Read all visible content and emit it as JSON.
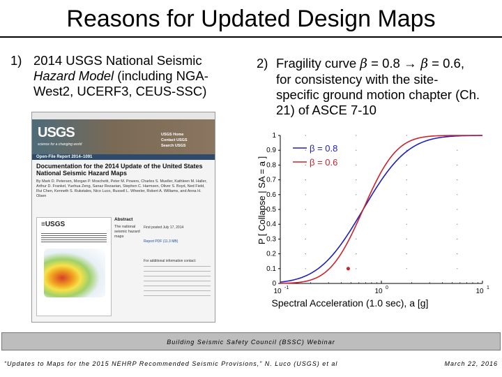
{
  "slide": {
    "title": "Reasons for Updated Design Maps",
    "point1": {
      "number": "1)",
      "line1": "2014 USGS National Seismic",
      "line2_italic": "Hazard Model",
      "line2_rest": " (including NGA-",
      "line3": "West2, UCERF3, CEUS-SSC)"
    },
    "point2": {
      "number": "2)",
      "line1_pre": "Fragility curve ",
      "line1_beta1": "β",
      "line1_eq1": " = 0.8 ",
      "line1_arrow": "→",
      "line1_beta2": " β",
      "line1_eq2": " = 0.6,",
      "line2": "for consistency with the site-",
      "line3": "specific ground motion chapter (Ch.",
      "line4": "21) of ASCE 7-10"
    }
  },
  "screenshot": {
    "usgs_logo": "USGS",
    "usgs_tagline": "science for a changing world",
    "links": [
      "USGS Home",
      "Contact USGS",
      "Search USGS"
    ],
    "series": "Open-File Report 2014–1091",
    "doc_title": "Documentation for the 2014 Update of the United States National Seismic Hazard Maps",
    "authors": "By Mark D. Petersen, Morgan P. Moschetti, Peter M. Powers, Charles S. Mueller, Kathleen M. Haller, Arthur D. Frankel, Yuehua Zeng, Sanaz Rezaeian, Stephen C. Harmsen, Oliver S. Boyd, Ned Field, Rui Chen, Kenneth S. Rukstales, Nico Luco, Russell L. Wheeler, Robert A. Williams, and Anna H. Olsen",
    "abstract_heading": "Abstract",
    "abstract_snippet": "The national seismic hazard maps",
    "posted": "First posted July 17, 2014",
    "report_link": "Report PDF (11.3 MB)",
    "more_info": "For additional information contact:"
  },
  "chart_data": {
    "type": "line",
    "xscale": "log",
    "xlim": [
      0.1,
      10
    ],
    "ylim": [
      0,
      1
    ],
    "xlabel": "Spectral Acceleration (1.0 sec), a  [g]",
    "ylabel": "P [ Collapse | SA = a ]",
    "x_tick_labels": [
      "10",
      "10",
      "10"
    ],
    "x_tick_exponents": [
      "-1",
      "0",
      "1"
    ],
    "y_ticks": [
      "0",
      "0.1",
      "0.2",
      "0.3",
      "0.4",
      "0.5",
      "0.6",
      "0.7",
      "0.8",
      "0.9",
      "1"
    ],
    "median": 0.66,
    "series": [
      {
        "name": "β = 0.8",
        "beta": 0.8,
        "color": "#1f1fbf"
      },
      {
        "name": "β = 0.6",
        "beta": 0.6,
        "color": "#d0202a"
      }
    ],
    "anchor_point": {
      "x": 0.47,
      "y": 0.1,
      "color": "#d0202a"
    }
  },
  "footer": {
    "banner": "Building Seismic Safety Council (BSSC) Webinar",
    "left": "“Updates to Maps for the 2015 NEHRP Recommended Seismic Provisions,” N. Luco (USGS) et al",
    "right": "March 22, 2016"
  }
}
